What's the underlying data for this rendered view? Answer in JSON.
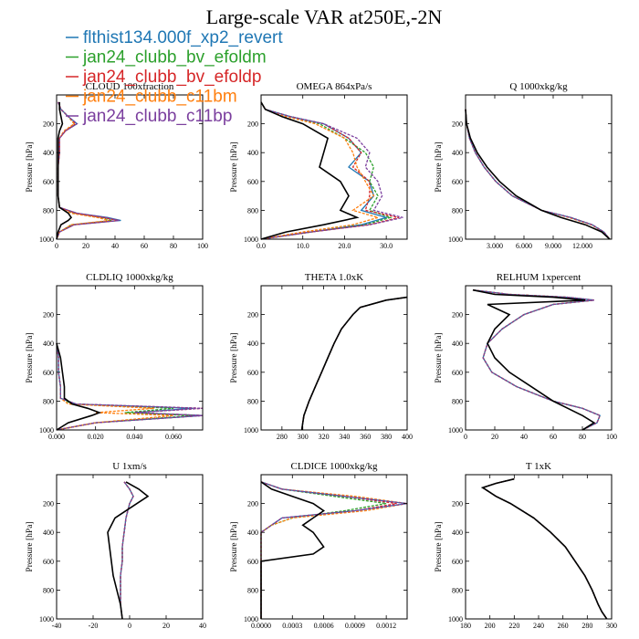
{
  "title": "Large-scale VAR at250E,-2N",
  "legend": [
    {
      "label": "flthist134.000f_xp2_revert",
      "color": "#1f77b4"
    },
    {
      "label": "jan24_clubb_bv_efoldm",
      "color": "#2ca02c"
    },
    {
      "label": "jan24_clubb_bv_efoldp",
      "color": "#d62728"
    },
    {
      "label": "jan24_clubb_c11bm",
      "color": "#ff7f0e"
    },
    {
      "label": "jan24_clubb_c11bp",
      "color": "#7b3f9e"
    }
  ],
  "reference_color": "#000000",
  "chart_data": [
    {
      "type": "line",
      "title": "CLOUD 100xfraction",
      "ylabel": "Pressure [hPa]",
      "xlim": [
        0,
        100
      ],
      "ylim": [
        1000,
        0
      ],
      "xticks": [
        0,
        20,
        40,
        60,
        80,
        100
      ],
      "xtick_labels": [
        "0",
        "20",
        "40",
        "60",
        "80",
        "100"
      ],
      "yticks": [
        200,
        400,
        600,
        800,
        1000
      ],
      "ytick_labels": [
        "200",
        "400",
        "600",
        "800",
        "1000"
      ],
      "p": [
        50,
        100,
        150,
        200,
        250,
        300,
        400,
        500,
        600,
        700,
        780,
        820,
        850,
        870,
        900,
        950,
        1000
      ],
      "reference": [
        2,
        2,
        3,
        4,
        2,
        1,
        1,
        1,
        1,
        1,
        2,
        8,
        10,
        8,
        3,
        1,
        0
      ],
      "series": [
        [
          1,
          3,
          8,
          14,
          6,
          2,
          2,
          1,
          1,
          1,
          2,
          14,
          35,
          44,
          12,
          2,
          0
        ],
        [
          1,
          3,
          8,
          12,
          6,
          2,
          2,
          1,
          1,
          1,
          2,
          12,
          30,
          38,
          10,
          2,
          0
        ],
        [
          1,
          3,
          8,
          13,
          6,
          2,
          2,
          1,
          1,
          1,
          2,
          13,
          32,
          42,
          12,
          2,
          0
        ],
        [
          1,
          3,
          8,
          12,
          5,
          2,
          2,
          1,
          1,
          1,
          2,
          10,
          28,
          36,
          10,
          2,
          0
        ],
        [
          1,
          3,
          8,
          14,
          6,
          2,
          2,
          1,
          1,
          1,
          2,
          14,
          34,
          43,
          12,
          2,
          0
        ]
      ]
    },
    {
      "type": "line",
      "title": "OMEGA 864xPa/s",
      "ylabel": "Pressure [hPa]",
      "xlim": [
        0,
        35
      ],
      "ylim": [
        1000,
        0
      ],
      "xticks": [
        0,
        10,
        20,
        30
      ],
      "xtick_labels": [
        "0.0",
        "10.0",
        "20.0",
        "30.0"
      ],
      "yticks": [
        200,
        400,
        600,
        800,
        1000
      ],
      "ytick_labels": [
        "200",
        "400",
        "600",
        "800",
        "1000"
      ],
      "p": [
        50,
        100,
        150,
        200,
        300,
        400,
        500,
        600,
        700,
        800,
        850,
        900,
        950,
        1000
      ],
      "reference": [
        0,
        1,
        5,
        10,
        16,
        15,
        14,
        19,
        21,
        19,
        23,
        15,
        6,
        0
      ],
      "series": [
        [
          0,
          1,
          7,
          15,
          21,
          24,
          21,
          26,
          27,
          24,
          30,
          24,
          12,
          0
        ],
        [
          0,
          1,
          7,
          14,
          20,
          25,
          27,
          26,
          28,
          26,
          31,
          25,
          12,
          0
        ],
        [
          0,
          1,
          7,
          15,
          21,
          24,
          22,
          26,
          26,
          25,
          33,
          26,
          12,
          0
        ],
        [
          0,
          1,
          6,
          13,
          20,
          22,
          23,
          25,
          27,
          22,
          28,
          22,
          10,
          0
        ],
        [
          0,
          1,
          7,
          15,
          23,
          26,
          25,
          28,
          29,
          27,
          34,
          26,
          12,
          0
        ]
      ]
    },
    {
      "type": "line",
      "title": "Q 1000xkg/kg",
      "ylabel": "Pressure [hPa]",
      "xlim": [
        0,
        15
      ],
      "ylim": [
        1000,
        0
      ],
      "xticks": [
        3,
        6,
        9,
        12
      ],
      "xtick_labels": [
        "3.000",
        "6.000",
        "9.000",
        "12.000"
      ],
      "yticks": [
        200,
        400,
        600,
        800,
        1000
      ],
      "ytick_labels": [
        "200",
        "400",
        "600",
        "800",
        "1000"
      ],
      "p": [
        100,
        200,
        300,
        400,
        500,
        600,
        700,
        800,
        850,
        900,
        950,
        1000
      ],
      "reference": [
        0,
        0.1,
        0.5,
        1.2,
        2.2,
        3.5,
        5.2,
        7.8,
        9.8,
        12.3,
        14,
        14.8
      ],
      "series": [
        [
          0,
          0.1,
          0.4,
          1,
          1.9,
          3.1,
          4.8,
          7.8,
          10.8,
          13,
          14.2,
          14.8
        ],
        [
          0,
          0.1,
          0.4,
          1,
          1.9,
          3.1,
          4.8,
          7.8,
          10.8,
          13,
          14.2,
          14.8
        ],
        [
          0,
          0.1,
          0.4,
          1,
          1.9,
          3.1,
          4.8,
          7.8,
          10.8,
          13,
          14.2,
          14.8
        ],
        [
          0,
          0.1,
          0.4,
          1,
          1.9,
          3.1,
          4.8,
          7.8,
          10.6,
          12.9,
          14.2,
          14.8
        ],
        [
          0,
          0.1,
          0.4,
          1,
          1.9,
          3.1,
          4.8,
          7.8,
          10.8,
          13,
          14.2,
          14.8
        ]
      ]
    },
    {
      "type": "line",
      "title": "CLDLIQ 1000xkg/kg",
      "ylabel": "Pressure [hPa]",
      "xlim": [
        0,
        0.075
      ],
      "ylim": [
        1000,
        0
      ],
      "xticks": [
        0,
        0.02,
        0.04,
        0.06
      ],
      "xtick_labels": [
        "0.000",
        "0.020",
        "0.040",
        "0.060"
      ],
      "yticks": [
        200,
        400,
        600,
        800,
        1000
      ],
      "ytick_labels": [
        "200",
        "400",
        "600",
        "800",
        "1000"
      ],
      "p": [
        400,
        500,
        600,
        700,
        780,
        820,
        850,
        880,
        900,
        950,
        1000
      ],
      "reference": [
        0,
        0.002,
        0.003,
        0.004,
        0.004,
        0.008,
        0.016,
        0.022,
        0.018,
        0.006,
        0
      ],
      "series": [
        [
          0,
          0.001,
          0.001,
          0.002,
          0.002,
          0.01,
          0.07,
          0.04,
          0.075,
          0.02,
          0
        ],
        [
          0,
          0.001,
          0.001,
          0.002,
          0.002,
          0.008,
          0.06,
          0.035,
          0.07,
          0.02,
          0
        ],
        [
          0,
          0.001,
          0.001,
          0.002,
          0.002,
          0.01,
          0.075,
          0.04,
          0.075,
          0.02,
          0
        ],
        [
          0,
          0.001,
          0.001,
          0.002,
          0.002,
          0.006,
          0.05,
          0.02,
          0.06,
          0.02,
          0
        ],
        [
          0,
          0.001,
          0.001,
          0.002,
          0.002,
          0.01,
          0.075,
          0.04,
          0.075,
          0.02,
          0
        ]
      ]
    },
    {
      "type": "line",
      "title": "THETA 1.0xK",
      "ylabel": "Pressure [hPa]",
      "xlim": [
        260,
        400
      ],
      "ylim": [
        1000,
        0
      ],
      "xticks": [
        280,
        300,
        320,
        340,
        360,
        380,
        400
      ],
      "xtick_labels": [
        "280",
        "300",
        "320",
        "340",
        "360",
        "380",
        "400"
      ],
      "yticks": [
        200,
        400,
        600,
        800,
        1000
      ],
      "ytick_labels": [
        "200",
        "400",
        "600",
        "800",
        "1000"
      ],
      "p": [
        80,
        100,
        150,
        200,
        300,
        400,
        500,
        600,
        700,
        800,
        900,
        950,
        1000
      ],
      "reference": [
        400,
        380,
        355,
        348,
        337,
        330,
        324,
        318,
        312,
        306,
        301,
        300,
        299
      ],
      "series": [
        [
          400,
          380,
          355,
          348,
          337,
          330,
          324,
          318,
          312,
          306,
          301,
          300,
          299
        ],
        [
          400,
          380,
          355,
          348,
          337,
          330,
          324,
          318,
          312,
          306,
          301,
          300,
          299
        ],
        [
          400,
          380,
          355,
          348,
          337,
          330,
          324,
          318,
          312,
          306,
          301,
          300,
          299
        ],
        [
          400,
          380,
          355,
          348,
          337,
          330,
          324,
          318,
          312,
          306,
          301,
          300,
          299
        ],
        [
          400,
          380,
          355,
          348,
          337,
          330,
          324,
          318,
          312,
          306,
          301,
          300,
          299
        ]
      ]
    },
    {
      "type": "line",
      "title": "RELHUM 1xpercent",
      "ylabel": "Pressure [hPa]",
      "xlim": [
        0,
        100
      ],
      "ylim": [
        1000,
        0
      ],
      "xticks": [
        0,
        20,
        40,
        60,
        80,
        100
      ],
      "xtick_labels": [
        "0",
        "20",
        "40",
        "60",
        "80",
        "100"
      ],
      "yticks": [
        200,
        400,
        600,
        800,
        1000
      ],
      "ytick_labels": [
        "200",
        "400",
        "600",
        "800",
        "1000"
      ],
      "p": [
        30,
        60,
        80,
        100,
        130,
        200,
        300,
        400,
        500,
        600,
        700,
        800,
        850,
        900,
        950,
        1000
      ],
      "reference": [
        5,
        20,
        60,
        82,
        15,
        30,
        20,
        15,
        20,
        30,
        45,
        60,
        70,
        80,
        88,
        80
      ],
      "series": [
        [
          5,
          30,
          70,
          88,
          60,
          40,
          25,
          15,
          12,
          18,
          35,
          60,
          80,
          92,
          90,
          80
        ],
        [
          5,
          30,
          70,
          88,
          60,
          40,
          25,
          15,
          12,
          18,
          35,
          60,
          80,
          92,
          90,
          80
        ],
        [
          5,
          30,
          70,
          88,
          60,
          40,
          25,
          15,
          12,
          18,
          35,
          60,
          80,
          92,
          90,
          80
        ],
        [
          5,
          30,
          70,
          88,
          60,
          40,
          25,
          15,
          12,
          18,
          35,
          60,
          80,
          92,
          90,
          80
        ],
        [
          5,
          30,
          70,
          88,
          60,
          40,
          25,
          15,
          12,
          18,
          35,
          60,
          80,
          92,
          90,
          80
        ]
      ]
    },
    {
      "type": "line",
      "title": "U 1xm/s",
      "ylabel": "Pressure [hPa]",
      "xlim": [
        -40,
        40
      ],
      "ylim": [
        1000,
        0
      ],
      "xticks": [
        -40,
        -20,
        0,
        20,
        40
      ],
      "xtick_labels": [
        "-40",
        "-20",
        "0",
        "20",
        "40"
      ],
      "yticks": [
        200,
        400,
        600,
        800,
        1000
      ],
      "ytick_labels": [
        "200",
        "400",
        "600",
        "800",
        "1000"
      ],
      "p": [
        50,
        100,
        150,
        200,
        300,
        400,
        500,
        600,
        700,
        800,
        900,
        1000
      ],
      "reference": [
        -2,
        5,
        10,
        4,
        -8,
        -12,
        -11,
        -10,
        -9,
        -7,
        -5,
        -4
      ],
      "series": [
        [
          -3,
          0,
          2,
          0,
          -2,
          -3,
          -4,
          -4,
          -5,
          -5,
          -5,
          -4
        ],
        [
          -3,
          0,
          2,
          0,
          -2,
          -3,
          -4,
          -4,
          -5,
          -5,
          -5,
          -4
        ],
        [
          -3,
          0,
          2,
          0,
          -2,
          -3,
          -4,
          -4,
          -5,
          -5,
          -5,
          -4
        ],
        [
          -3,
          0,
          2,
          0,
          -2,
          -3,
          -4,
          -4,
          -5,
          -5,
          -5,
          -4
        ],
        [
          -3,
          0,
          2,
          0,
          -2,
          -3,
          -4,
          -4,
          -5,
          -5,
          -5,
          -4
        ]
      ]
    },
    {
      "type": "line",
      "title": "CLDICE 1000xkg/kg",
      "ylabel": "Pressure [hPa]",
      "xlim": [
        0,
        0.0014
      ],
      "ylim": [
        1000,
        0
      ],
      "xticks": [
        0,
        0.0003,
        0.0006,
        0.0009,
        0.0012
      ],
      "xtick_labels": [
        "0.0000",
        "0.0003",
        "0.0006",
        "0.0009",
        "0.0012"
      ],
      "yticks": [
        200,
        400,
        600,
        800,
        1000
      ],
      "ytick_labels": [
        "200",
        "400",
        "600",
        "800",
        "1000"
      ],
      "p": [
        50,
        100,
        150,
        200,
        250,
        300,
        350,
        400,
        500,
        550,
        600,
        700,
        1000
      ],
      "reference": [
        0,
        0.0001,
        0.0003,
        0.0005,
        0.0006,
        0.0005,
        0.0004,
        0.0005,
        0.0006,
        0.0005,
        0,
        0,
        0
      ],
      "series": [
        [
          0,
          0.0002,
          0.0008,
          0.0014,
          0.0009,
          0.0002,
          0.0001,
          0,
          0,
          0,
          0,
          0,
          0
        ],
        [
          0,
          0.0002,
          0.0007,
          0.0012,
          0.0008,
          0.0003,
          0.0001,
          0,
          0,
          0,
          0,
          0,
          0
        ],
        [
          0,
          0.0002,
          0.0008,
          0.0013,
          0.0009,
          0.0002,
          0.0001,
          0,
          0,
          0,
          0,
          0,
          0
        ],
        [
          0,
          0.0002,
          0.0009,
          0.0014,
          0.001,
          0.0003,
          0.0001,
          0,
          0,
          0,
          0,
          0,
          0
        ],
        [
          0,
          0.0002,
          0.0008,
          0.0014,
          0.0009,
          0.0002,
          0.0001,
          0,
          0,
          0,
          0,
          0,
          0
        ]
      ]
    },
    {
      "type": "line",
      "title": "T 1xK",
      "ylabel": "Pressure [hPa]",
      "xlim": [
        180,
        300
      ],
      "ylim": [
        1000,
        0
      ],
      "xticks": [
        180,
        200,
        220,
        240,
        260,
        280,
        300
      ],
      "xtick_labels": [
        "180",
        "200",
        "220",
        "240",
        "260",
        "280",
        "300"
      ],
      "yticks": [
        200,
        400,
        600,
        800,
        1000
      ],
      "ytick_labels": [
        "200",
        "400",
        "600",
        "800",
        "1000"
      ],
      "p": [
        30,
        60,
        90,
        100,
        150,
        200,
        300,
        400,
        500,
        600,
        700,
        800,
        900,
        950,
        1000
      ],
      "reference": [
        220,
        205,
        194,
        196,
        205,
        217,
        236,
        250,
        262,
        270,
        278,
        284,
        289,
        292,
        296
      ],
      "series": [
        [
          220,
          205,
          194,
          196,
          205,
          217,
          236,
          250,
          262,
          270,
          278,
          284,
          289,
          292,
          296
        ],
        [
          220,
          205,
          194,
          196,
          205,
          217,
          236,
          250,
          262,
          270,
          278,
          284,
          289,
          292,
          296
        ],
        [
          220,
          205,
          194,
          196,
          205,
          217,
          236,
          250,
          262,
          270,
          278,
          284,
          289,
          292,
          296
        ],
        [
          220,
          205,
          194,
          196,
          205,
          217,
          236,
          250,
          262,
          270,
          278,
          284,
          289,
          292,
          296
        ],
        [
          220,
          205,
          194,
          196,
          205,
          217,
          236,
          250,
          262,
          270,
          278,
          284,
          289,
          292,
          296
        ]
      ]
    }
  ]
}
